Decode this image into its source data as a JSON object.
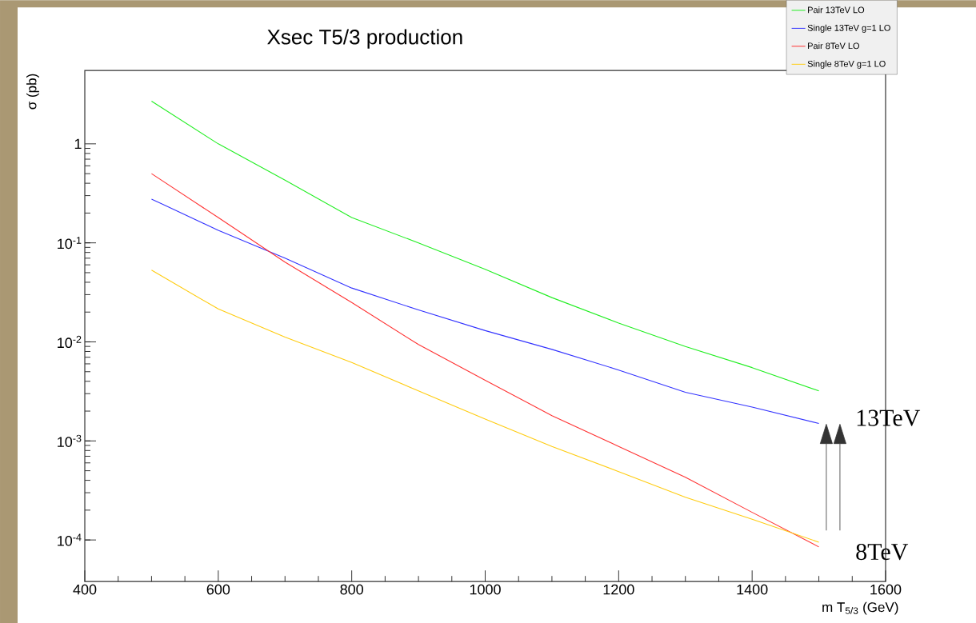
{
  "chart_data": {
    "type": "line",
    "title": "Xsec T5/3 production",
    "xlabel": "m T$_{5/3}$ (GeV)",
    "ylabel": "σ (pb)",
    "x": [
      500,
      600,
      700,
      800,
      900,
      1000,
      1100,
      1200,
      1300,
      1400,
      1500
    ],
    "series": [
      {
        "name": "Pair 13TeV LO",
        "color": "#22ee22",
        "values": [
          2.7,
          1.0,
          0.43,
          0.18,
          0.1,
          0.054,
          0.028,
          0.0155,
          0.009,
          0.0055,
          0.0032
        ]
      },
      {
        "name": "Single 13TeV g=1 LO",
        "color": "#3333ff",
        "values": [
          0.277,
          0.134,
          0.07,
          0.035,
          0.021,
          0.013,
          0.0084,
          0.0052,
          0.0031,
          0.0022,
          0.0015
        ]
      },
      {
        "name": "Pair 8TeV LO",
        "color": "#ff3333",
        "values": [
          0.5,
          0.18,
          0.064,
          0.025,
          0.0094,
          0.0041,
          0.0018,
          0.00088,
          0.00043,
          0.00019,
          8.5e-05
        ]
      },
      {
        "name": "Single 8TeV g=1 LO",
        "color": "#ffcc11",
        "values": [
          0.053,
          0.0215,
          0.0112,
          0.0062,
          0.0032,
          0.00166,
          0.00088,
          0.00049,
          0.00027,
          0.000162,
          9.5e-05
        ]
      }
    ],
    "xlim": [
      400,
      1600
    ],
    "ylim": [
      3.8e-05,
      5.5
    ],
    "xticks": [
      400,
      600,
      800,
      1000,
      1200,
      1400,
      1600
    ],
    "yticks": [
      {
        "value": 0.0001,
        "label": "10$^{-4}$"
      },
      {
        "value": 0.001,
        "label": "10$^{-3}$"
      },
      {
        "value": 0.01,
        "label": "10$^{-2}$"
      },
      {
        "value": 0.1,
        "label": "10$^{-1}$"
      },
      1
    ],
    "log": true,
    "legend": "top right",
    "annotations": [
      "13TeV",
      "8TeV"
    ]
  }
}
